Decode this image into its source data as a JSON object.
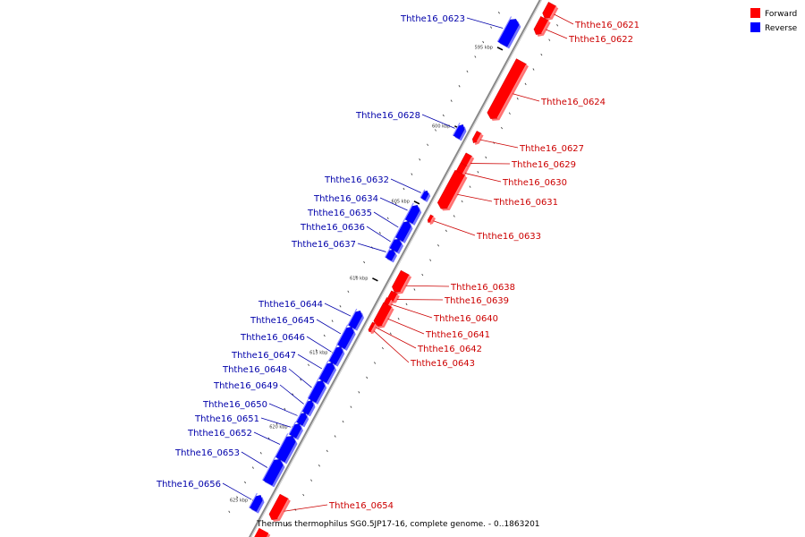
{
  "caption": "Thermus thermophilus SG0.5JP17-16, complete genome. - 0..1863201",
  "legend": [
    {
      "label": "Forward",
      "color": "#ff0000"
    },
    {
      "label": "Reverse",
      "color": "#0000ff"
    }
  ],
  "colors": {
    "forward": "#ff0000",
    "forward_label": "#cc0000",
    "reverse": "#0000ff",
    "reverse_label": "#0000aa",
    "backbone": "#888888"
  },
  "ticks": [
    {
      "kbp": 595,
      "label": "595 kbp"
    },
    {
      "kbp": 600,
      "label": "600 kbp"
    },
    {
      "kbp": 605,
      "label": "605 kbp"
    },
    {
      "kbp": 610,
      "label": "610 kbp"
    },
    {
      "kbp": 615,
      "label": "615 kbp"
    },
    {
      "kbp": 620,
      "label": "620 kbp"
    },
    {
      "kbp": 625,
      "label": "625 kbp"
    }
  ],
  "genes": [
    {
      "name": "Ththe16_0621",
      "strand": "forward"
    },
    {
      "name": "Ththe16_0622",
      "strand": "forward"
    },
    {
      "name": "Ththe16_0623",
      "strand": "reverse"
    },
    {
      "name": "Ththe16_0624",
      "strand": "forward"
    },
    {
      "name": "Ththe16_0627",
      "strand": "forward"
    },
    {
      "name": "Ththe16_0628",
      "strand": "reverse"
    },
    {
      "name": "Ththe16_0629",
      "strand": "forward"
    },
    {
      "name": "Ththe16_0630",
      "strand": "forward"
    },
    {
      "name": "Ththe16_0631",
      "strand": "forward"
    },
    {
      "name": "Ththe16_0632",
      "strand": "reverse"
    },
    {
      "name": "Ththe16_0633",
      "strand": "forward"
    },
    {
      "name": "Ththe16_0634",
      "strand": "reverse"
    },
    {
      "name": "Ththe16_0635",
      "strand": "reverse"
    },
    {
      "name": "Ththe16_0636",
      "strand": "reverse"
    },
    {
      "name": "Ththe16_0637",
      "strand": "reverse"
    },
    {
      "name": "Ththe16_0638",
      "strand": "forward"
    },
    {
      "name": "Ththe16_0639",
      "strand": "forward"
    },
    {
      "name": "Ththe16_0640",
      "strand": "forward"
    },
    {
      "name": "Ththe16_0641",
      "strand": "forward"
    },
    {
      "name": "Ththe16_0642",
      "strand": "forward"
    },
    {
      "name": "Ththe16_0643",
      "strand": "forward"
    },
    {
      "name": "Ththe16_0644",
      "strand": "reverse"
    },
    {
      "name": "Ththe16_0645",
      "strand": "reverse"
    },
    {
      "name": "Ththe16_0646",
      "strand": "reverse"
    },
    {
      "name": "Ththe16_0647",
      "strand": "reverse"
    },
    {
      "name": "Ththe16_0648",
      "strand": "reverse"
    },
    {
      "name": "Ththe16_0649",
      "strand": "reverse"
    },
    {
      "name": "Ththe16_0650",
      "strand": "reverse"
    },
    {
      "name": "Ththe16_0651",
      "strand": "reverse"
    },
    {
      "name": "Ththe16_0652",
      "strand": "reverse"
    },
    {
      "name": "Ththe16_0653",
      "strand": "reverse"
    },
    {
      "name": "Ththe16_0654",
      "strand": "forward"
    },
    {
      "name": "Ththe16_0656",
      "strand": "reverse"
    }
  ]
}
